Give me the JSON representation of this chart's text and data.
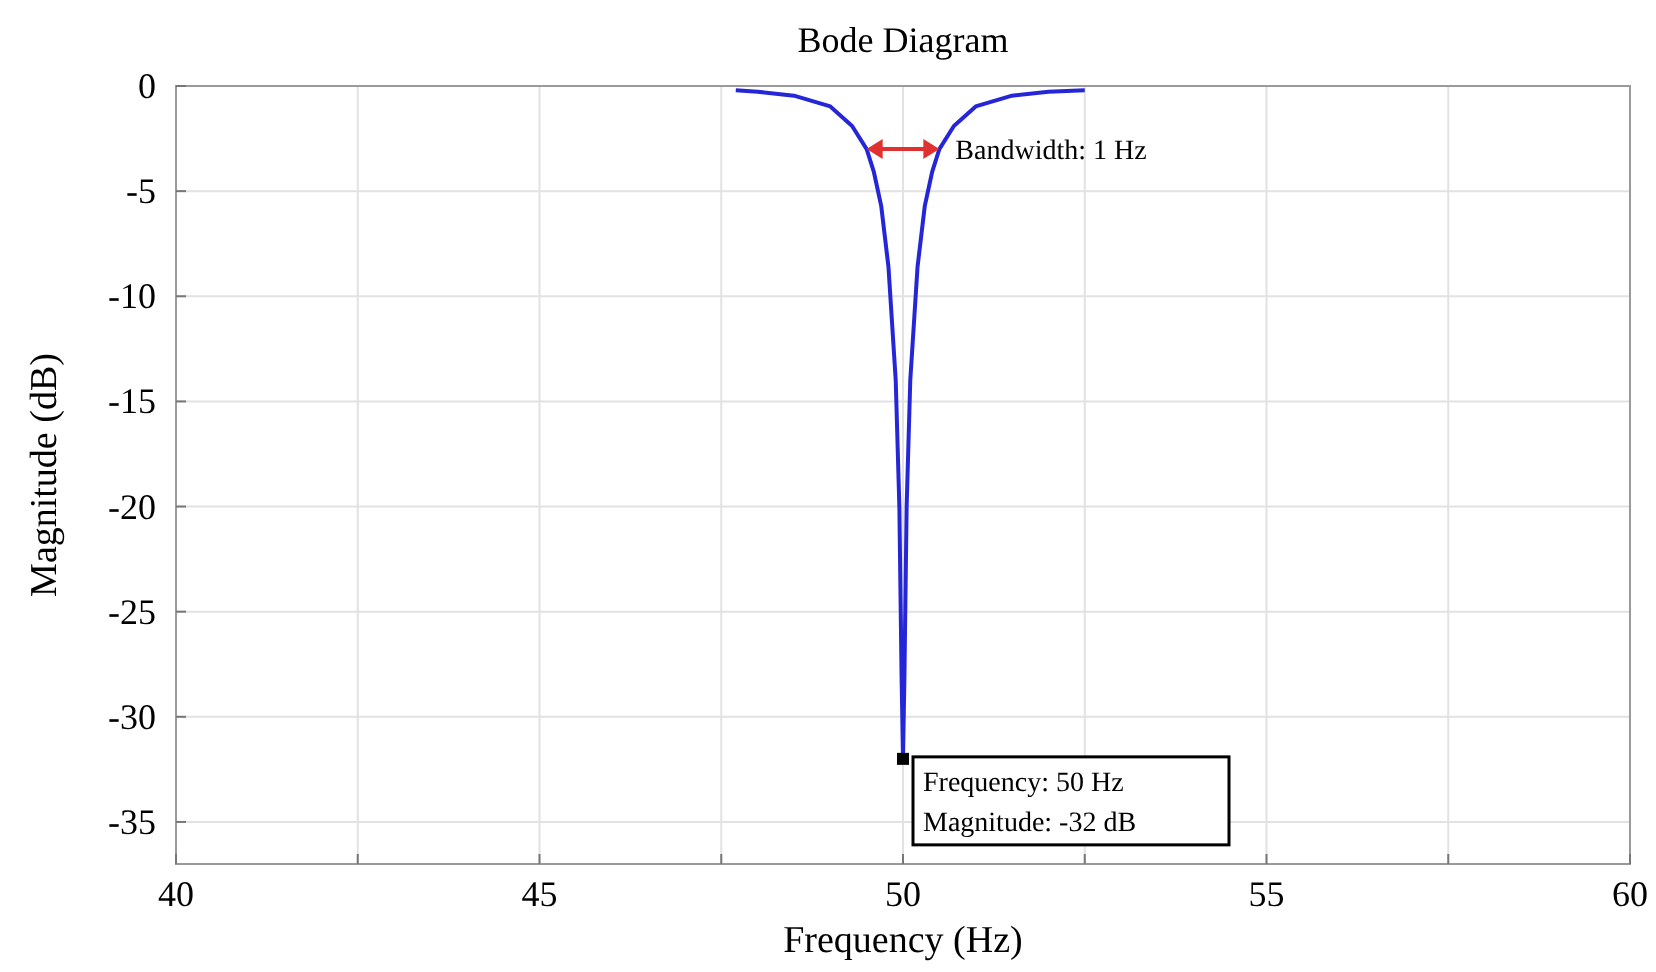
{
  "chart_data": {
    "type": "line",
    "title": "Bode Diagram",
    "xlabel": "Frequency (Hz)",
    "ylabel": "Magnitude (dB)",
    "x": [
      47.7,
      48,
      48.5,
      49,
      49.3,
      49.5,
      49.6,
      49.7,
      49.8,
      49.9,
      49.95,
      49.98,
      50,
      50.02,
      50.05,
      50.1,
      50.2,
      50.3,
      50.4,
      50.5,
      50.7,
      51,
      51.5,
      52,
      52.5
    ],
    "series": [
      {
        "color": "#2626d9",
        "values": [
          -0.2,
          -0.27,
          -0.46,
          -0.97,
          -1.9,
          -3,
          -4.1,
          -5.7,
          -8.6,
          -14,
          -20,
          -28,
          -32,
          -28,
          -20,
          -14,
          -8.6,
          -5.7,
          -4.1,
          -3,
          -1.9,
          -0.97,
          -0.46,
          -0.27,
          -0.2
        ]
      }
    ],
    "xlim": [
      40,
      60
    ],
    "xticks": [
      40,
      {
        "value": 42.5,
        "label": null
      },
      45,
      {
        "value": 47.5,
        "label": null
      },
      50,
      {
        "value": 52.5,
        "label": null
      },
      55,
      {
        "value": 57.5,
        "label": null
      },
      60
    ],
    "ylim": [
      -37,
      0
    ],
    "yticks": [
      -35,
      -30,
      -25,
      -20,
      -15,
      -10,
      -5,
      0
    ],
    "grid": true,
    "marker": "none",
    "line_style": "solid",
    "annotations": [
      {
        "text": "Bandwidth: 1 Hz",
        "x": 50.5,
        "y": -3
      },
      {
        "text": "Frequency: 50 Hz\nMagnitude: -32 dB",
        "x": 50,
        "y": -32
      }
    ]
  }
}
